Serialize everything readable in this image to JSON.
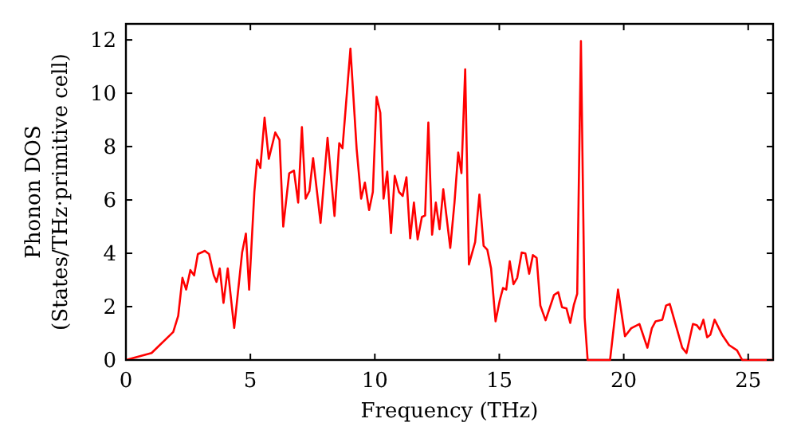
{
  "chart_data": {
    "type": "line",
    "xlabel": "Frequency (THz)",
    "ylabel": "Phonon DOS\n(States/THz·primitive cell)",
    "xlim": [
      0,
      26
    ],
    "ylim": [
      0,
      12.6
    ],
    "xticks": [
      0,
      5,
      10,
      15,
      20,
      25
    ],
    "yticks": [
      0,
      2,
      4,
      6,
      8,
      10,
      12
    ],
    "grid": false,
    "marker": "none",
    "line_style": "solid",
    "series": [
      {
        "color": "#ff0000",
        "x": [
          0,
          1.03,
          1.9,
          2.1,
          2.27,
          2.42,
          2.59,
          2.74,
          2.89,
          3.17,
          3.34,
          3.53,
          3.64,
          3.77,
          3.92,
          4.09,
          4.35,
          4.67,
          4.82,
          4.95,
          5.16,
          5.27,
          5.4,
          5.57,
          5.74,
          6.0,
          6.17,
          6.32,
          6.56,
          6.75,
          6.92,
          7.07,
          7.22,
          7.37,
          7.52,
          7.82,
          8.1,
          8.38,
          8.57,
          8.7,
          9.02,
          9.27,
          9.45,
          9.6,
          9.77,
          9.92,
          10.07,
          10.22,
          10.35,
          10.5,
          10.65,
          10.8,
          10.97,
          11.12,
          11.27,
          11.42,
          11.57,
          11.72,
          11.89,
          12.02,
          12.15,
          12.3,
          12.45,
          12.6,
          12.75,
          13.03,
          13.2,
          13.35,
          13.48,
          13.63,
          13.78,
          14.03,
          14.2,
          14.37,
          14.52,
          14.67,
          14.85,
          15.02,
          15.15,
          15.28,
          15.42,
          15.57,
          15.72,
          15.9,
          16.05,
          16.2,
          16.35,
          16.5,
          16.65,
          16.86,
          17.2,
          17.37,
          17.52,
          17.7,
          17.85,
          18.0,
          18.13,
          18.28,
          18.43,
          18.55,
          19.45,
          19.77,
          20.05,
          20.3,
          20.63,
          20.95,
          21.13,
          21.28,
          21.55,
          21.7,
          21.85,
          22.35,
          22.52,
          22.78,
          22.93,
          23.06,
          23.2,
          23.35,
          23.48,
          23.65,
          23.95,
          24.23,
          24.55,
          24.76,
          26.0
        ],
        "values": [
          0,
          0.26,
          1.05,
          1.65,
          3.08,
          2.64,
          3.37,
          3.17,
          3.97,
          4.09,
          3.97,
          3.17,
          2.93,
          3.43,
          2.14,
          3.43,
          1.2,
          4.04,
          4.74,
          2.64,
          6.3,
          7.5,
          7.2,
          9.08,
          7.54,
          8.53,
          8.25,
          5.0,
          7.0,
          7.1,
          5.9,
          8.73,
          6.05,
          6.33,
          7.57,
          5.14,
          8.33,
          5.4,
          8.13,
          7.94,
          11.67,
          7.9,
          6.05,
          6.65,
          5.62,
          6.3,
          9.87,
          9.27,
          6.05,
          7.06,
          4.76,
          6.9,
          6.3,
          6.15,
          6.85,
          4.56,
          5.9,
          4.52,
          5.36,
          5.42,
          8.9,
          4.7,
          5.9,
          4.9,
          6.4,
          4.2,
          5.9,
          7.78,
          7.0,
          10.9,
          3.58,
          4.42,
          6.2,
          4.28,
          4.13,
          3.43,
          1.45,
          2.24,
          2.7,
          2.64,
          3.7,
          2.84,
          3.08,
          4.03,
          3.99,
          3.23,
          3.93,
          3.83,
          2.04,
          1.49,
          2.44,
          2.54,
          1.98,
          1.93,
          1.39,
          2.08,
          2.48,
          11.96,
          1.59,
          0,
          0,
          2.64,
          0.89,
          1.19,
          1.35,
          0.46,
          1.19,
          1.45,
          1.51,
          2.04,
          2.1,
          0.46,
          0.26,
          1.35,
          1.31,
          1.15,
          1.51,
          0.85,
          0.95,
          1.51,
          0.95,
          0.56,
          0.36,
          0,
          0
        ]
      }
    ]
  }
}
